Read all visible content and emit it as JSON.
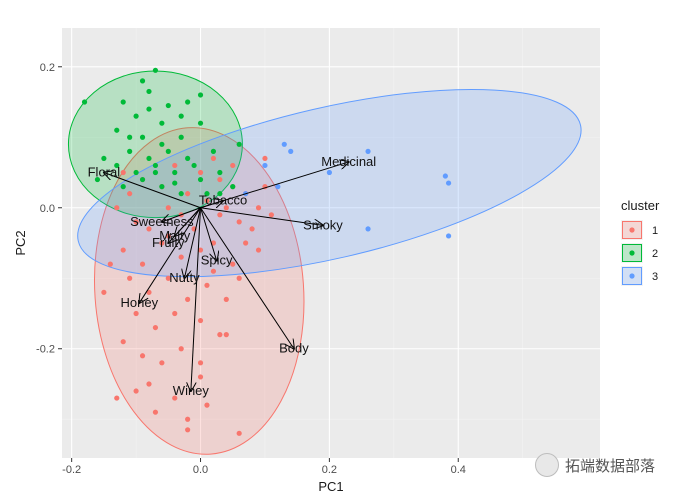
{
  "chart_data": {
    "type": "scatter",
    "subtype": "pca-biplot",
    "xlabel": "PC1",
    "ylabel": "PC2",
    "xlim": [
      -0.215,
      0.62
    ],
    "ylim": [
      -0.355,
      0.255
    ],
    "xticks": [
      -0.2,
      0.0,
      0.2,
      0.4
    ],
    "xtick_labels": [
      "-0.2",
      "0.0",
      "0.2",
      "0.4"
    ],
    "yticks": [
      0.2,
      0.0,
      -0.2
    ],
    "ytick_labels": [
      "0.2",
      "0.0",
      "-0.2"
    ],
    "legend": {
      "title": "cluster",
      "position": "right",
      "entries": [
        {
          "label": "1",
          "color": "#F8766D"
        },
        {
          "label": "2",
          "color": "#00BA38"
        },
        {
          "label": "3",
          "color": "#619CFF"
        }
      ]
    },
    "colors": {
      "panel": "#EBEBEB",
      "grid_major": "#FFFFFF",
      "grid_minor": "#F3F3F3",
      "arrow": "#000000"
    },
    "ellipses": [
      {
        "cluster": "1",
        "center": [
          -0.002,
          -0.118
        ],
        "rx": 0.162,
        "ry": 0.232,
        "angle": -4
      },
      {
        "cluster": "2",
        "center": [
          -0.07,
          0.09
        ],
        "rx": 0.135,
        "ry": 0.104,
        "angle": 0
      },
      {
        "cluster": "3",
        "center": [
          0.2,
          0.035
        ],
        "rx": 0.4,
        "ry": 0.107,
        "angle": -13
      }
    ],
    "series": [
      {
        "name": "1",
        "color": "#F8766D",
        "points": [
          [
            -0.12,
            0.05
          ],
          [
            -0.09,
            0.04
          ],
          [
            -0.06,
            0.03
          ],
          [
            -0.04,
            0.06
          ],
          [
            -0.02,
            0.02
          ],
          [
            0.0,
            0.05
          ],
          [
            0.02,
            0.07
          ],
          [
            0.03,
            0.04
          ],
          [
            0.05,
            0.03
          ],
          [
            0.07,
            0.02
          ],
          [
            0.1,
            0.03
          ],
          [
            -0.13,
            0.0
          ],
          [
            -0.1,
            -0.02
          ],
          [
            -0.08,
            -0.03
          ],
          [
            -0.05,
            0.0
          ],
          [
            -0.03,
            -0.01
          ],
          [
            0.01,
            0.01
          ],
          [
            0.03,
            -0.01
          ],
          [
            0.06,
            -0.02
          ],
          [
            0.09,
            0.0
          ],
          [
            0.11,
            -0.01
          ],
          [
            -0.12,
            -0.06
          ],
          [
            -0.09,
            -0.08
          ],
          [
            -0.06,
            -0.05
          ],
          [
            -0.03,
            -0.07
          ],
          [
            0.0,
            -0.06
          ],
          [
            0.02,
            -0.09
          ],
          [
            0.05,
            -0.08
          ],
          [
            0.07,
            -0.05
          ],
          [
            0.09,
            -0.06
          ],
          [
            -0.14,
            -0.08
          ],
          [
            -0.11,
            -0.1
          ],
          [
            -0.08,
            -0.12
          ],
          [
            -0.05,
            -0.1
          ],
          [
            -0.02,
            -0.13
          ],
          [
            0.01,
            -0.11
          ],
          [
            0.04,
            -0.13
          ],
          [
            0.06,
            -0.1
          ],
          [
            -0.1,
            -0.15
          ],
          [
            -0.07,
            -0.17
          ],
          [
            -0.04,
            -0.15
          ],
          [
            0.0,
            -0.16
          ],
          [
            0.03,
            -0.18
          ],
          [
            -0.12,
            -0.19
          ],
          [
            -0.09,
            -0.21
          ],
          [
            -0.06,
            -0.22
          ],
          [
            -0.03,
            -0.2
          ],
          [
            0.0,
            -0.22
          ],
          [
            0.04,
            -0.18
          ],
          [
            -0.08,
            -0.25
          ],
          [
            -0.04,
            -0.27
          ],
          [
            0.0,
            -0.24
          ],
          [
            0.01,
            -0.28
          ],
          [
            -0.02,
            -0.3
          ],
          [
            -0.1,
            -0.26
          ],
          [
            -0.13,
            -0.27
          ],
          [
            -0.07,
            -0.29
          ],
          [
            -0.02,
            -0.315
          ],
          [
            0.06,
            -0.32
          ],
          [
            0.02,
            -0.05
          ],
          [
            -0.01,
            -0.03
          ],
          [
            0.04,
            0.0
          ],
          [
            0.08,
            -0.03
          ],
          [
            -0.15,
            -0.12
          ],
          [
            -0.11,
            0.02
          ],
          [
            0.05,
            0.06
          ],
          [
            0.1,
            0.07
          ],
          [
            -0.05,
            -0.04
          ]
        ]
      },
      {
        "name": "2",
        "color": "#00BA38",
        "points": [
          [
            -0.18,
            0.15
          ],
          [
            -0.07,
            0.195
          ],
          [
            -0.09,
            0.18
          ],
          [
            -0.12,
            0.15
          ],
          [
            -0.08,
            0.14
          ],
          [
            -0.05,
            0.145
          ],
          [
            -0.1,
            0.13
          ],
          [
            -0.06,
            0.12
          ],
          [
            -0.03,
            0.13
          ],
          [
            -0.13,
            0.11
          ],
          [
            -0.09,
            0.1
          ],
          [
            -0.06,
            0.09
          ],
          [
            -0.03,
            0.1
          ],
          [
            0.0,
            0.12
          ],
          [
            -0.11,
            0.08
          ],
          [
            -0.08,
            0.07
          ],
          [
            -0.05,
            0.08
          ],
          [
            -0.02,
            0.07
          ],
          [
            -0.13,
            0.06
          ],
          [
            -0.1,
            0.05
          ],
          [
            -0.07,
            0.06
          ],
          [
            -0.04,
            0.05
          ],
          [
            -0.01,
            0.06
          ],
          [
            0.02,
            0.08
          ],
          [
            -0.16,
            0.04
          ],
          [
            -0.12,
            0.03
          ],
          [
            -0.09,
            0.04
          ],
          [
            -0.06,
            0.03
          ],
          [
            -0.03,
            0.02
          ],
          [
            0.0,
            0.04
          ],
          [
            0.03,
            0.05
          ],
          [
            0.06,
            0.09
          ],
          [
            -0.11,
            0.1
          ],
          [
            -0.07,
            0.05
          ],
          [
            -0.04,
            0.035
          ],
          [
            0.01,
            0.02
          ],
          [
            0.03,
            0.02
          ],
          [
            0.0,
            0.16
          ],
          [
            -0.02,
            0.15
          ],
          [
            -0.08,
            0.165
          ],
          [
            -0.15,
            0.07
          ],
          [
            0.05,
            0.03
          ]
        ]
      },
      {
        "name": "3",
        "color": "#619CFF",
        "points": [
          [
            0.13,
            0.09
          ],
          [
            0.14,
            0.08
          ],
          [
            0.26,
            0.08
          ],
          [
            0.38,
            0.045
          ],
          [
            0.385,
            0.035
          ],
          [
            0.26,
            -0.03
          ],
          [
            0.385,
            -0.04
          ],
          [
            0.1,
            0.06
          ],
          [
            0.12,
            0.03
          ],
          [
            0.07,
            0.02
          ],
          [
            0.2,
            0.05
          ]
        ]
      }
    ],
    "loadings": [
      {
        "name": "Medicinal",
        "x": 0.23,
        "y": 0.065
      },
      {
        "name": "Floral",
        "x": -0.15,
        "y": 0.05
      },
      {
        "name": "Tobacco",
        "x": 0.035,
        "y": 0.01
      },
      {
        "name": "Smoky",
        "x": 0.19,
        "y": -0.025
      },
      {
        "name": "Sweetness",
        "x": -0.06,
        "y": -0.02
      },
      {
        "name": "Malty",
        "x": -0.04,
        "y": -0.04
      },
      {
        "name": "Fruity",
        "x": -0.05,
        "y": -0.05
      },
      {
        "name": "Spicy",
        "x": 0.025,
        "y": -0.075
      },
      {
        "name": "Nutty",
        "x": -0.025,
        "y": -0.1
      },
      {
        "name": "Honey",
        "x": -0.095,
        "y": -0.135
      },
      {
        "name": "Body",
        "x": 0.145,
        "y": -0.2
      },
      {
        "name": "Winey",
        "x": -0.015,
        "y": -0.26
      }
    ],
    "label_text": [
      "Medicinal",
      "Floral",
      "Tobacco",
      "Smoky",
      "Sweetness",
      "Malty",
      "Fruity",
      "Spicy",
      "Nutty",
      "Honey",
      "Body",
      "Winey"
    ]
  },
  "watermark": "拓端数据部落"
}
